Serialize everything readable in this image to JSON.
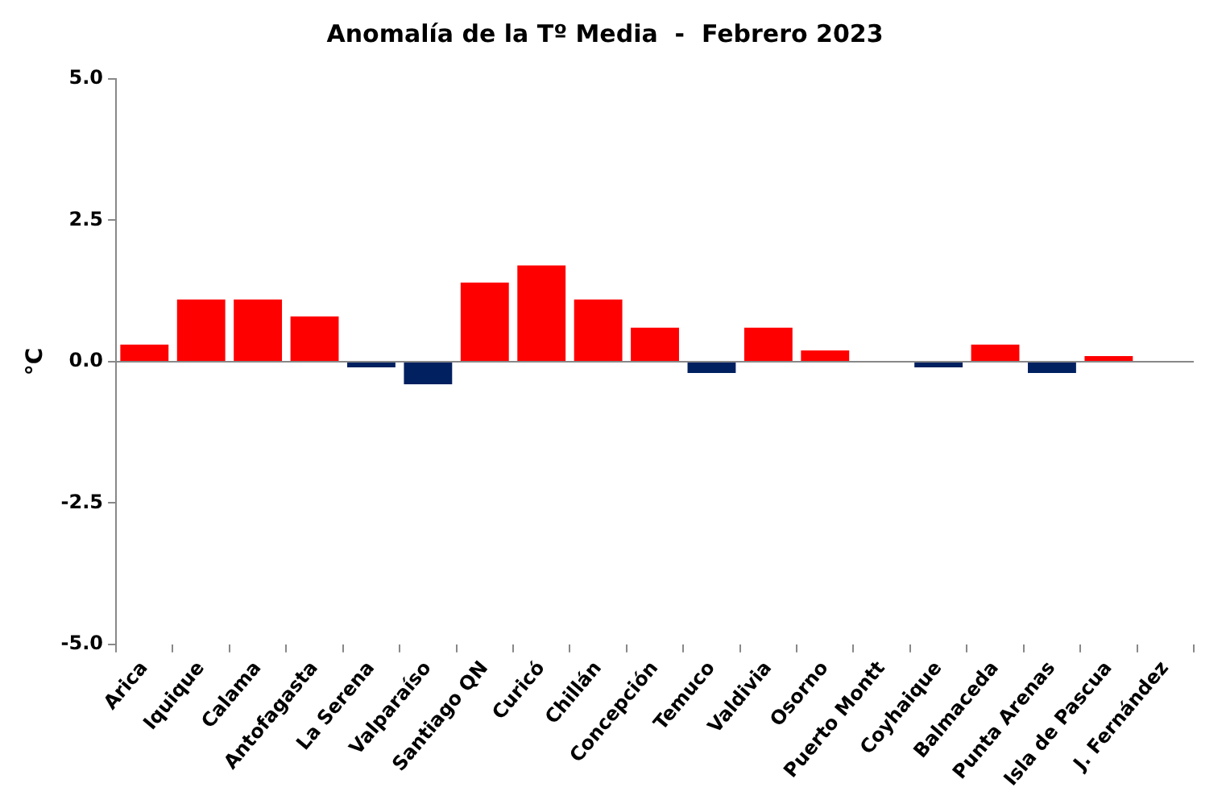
{
  "chart_data": {
    "type": "bar",
    "title": "Anomalía de la Tº Media  -  Febrero 2023",
    "ylabel": "°C",
    "categories": [
      "Arica",
      "Iquique",
      "Calama",
      "Antofagasta",
      "La Serena",
      "Valparaíso",
      "Santiago QN",
      "Curicó",
      "Chillán",
      "Concepción",
      "Temuco",
      "Valdivia",
      "Osorno",
      "Puerto Montt",
      "Coyhaique",
      "Balmaceda",
      "Punta Arenas",
      "Isla de Pascua",
      "J. Fernández"
    ],
    "values": [
      0.3,
      1.1,
      1.1,
      0.8,
      -0.1,
      -0.4,
      1.4,
      1.7,
      1.1,
      0.6,
      -0.2,
      0.6,
      0.2,
      0,
      -0.1,
      0.3,
      -0.2,
      0.1,
      null
    ],
    "colors": [
      "#ff0000",
      "#ff0000",
      "#ff0000",
      "#ff0000",
      "#002060",
      "#002060",
      "#ff0000",
      "#ff0000",
      "#ff0000",
      "#ff0000",
      "#002060",
      "#ff0000",
      "#ff0000",
      "#ff0000",
      "#002060",
      "#ff0000",
      "#002060",
      "#ff0000",
      "#ff0000"
    ],
    "ylim": [
      -5,
      5
    ],
    "yticks": [
      {
        "value": -5,
        "label": "-5.0"
      },
      {
        "value": -2.5,
        "label": "-2.5"
      },
      {
        "value": 0,
        "label": "0.0"
      },
      {
        "value": 2.5,
        "label": "2.5"
      },
      {
        "value": 5,
        "label": "5.0"
      }
    ],
    "ref_lines": [
      {
        "axis": "y",
        "value": 0,
        "color": "#888888"
      }
    ],
    "grid": false,
    "legend": false
  }
}
